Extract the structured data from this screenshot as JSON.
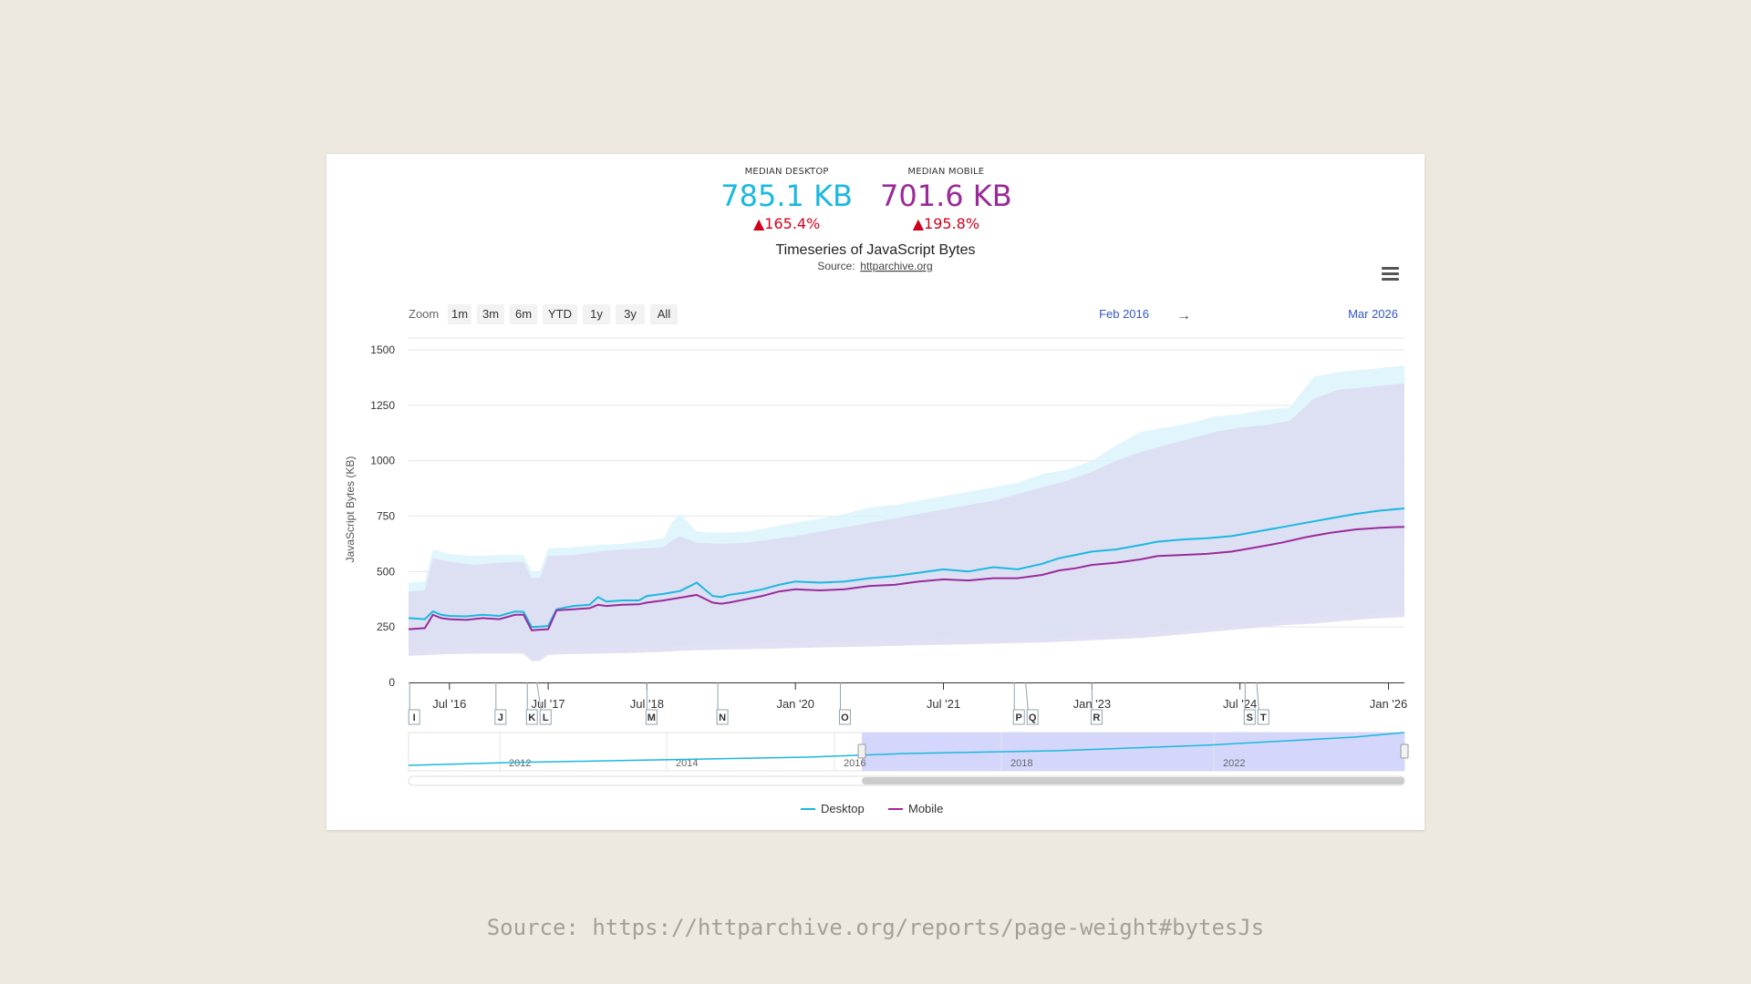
{
  "stats": {
    "desktop": {
      "label": "MEDIAN DESKTOP",
      "value": "785.1 KB",
      "change": "▲165.4%",
      "color": "#1bb8e0"
    },
    "mobile": {
      "label": "MEDIAN MOBILE",
      "value": "701.6 KB",
      "change": "▲195.8%",
      "color": "#9a2a9a"
    }
  },
  "chart_header": {
    "title": "Timeseries of JavaScript Bytes",
    "source_prefix": "Source: ",
    "source_link": "httparchive.org"
  },
  "zoom": {
    "label": "Zoom",
    "buttons": [
      "1m",
      "3m",
      "6m",
      "YTD",
      "1y",
      "3y",
      "All"
    ]
  },
  "range": {
    "from": "Feb 2016",
    "arrow": "→",
    "to": "Mar 2026"
  },
  "annotations": [
    "I",
    "J",
    "K",
    "L",
    "M",
    "N",
    "O",
    "P",
    "Q",
    "R",
    "S",
    "T"
  ],
  "navigator": {
    "year_labels": [
      "2012",
      "2014",
      "2016",
      "2018",
      "2022"
    ]
  },
  "footer": {
    "source": "Source: https://httparchive.org/reports/page-weight#bytesJs"
  },
  "colors": {
    "desktop": "#1bb8e0",
    "mobile": "#9a2a9a",
    "desktop_band": "#dcf3fc",
    "mobile_band": "#dcdcf1",
    "navigator_selection": "#cfd3fb"
  },
  "chart_data": {
    "type": "line",
    "title": "Timeseries of JavaScript Bytes",
    "ylabel": "JavaScript Bytes (KB)",
    "ylim": [
      0,
      1500
    ],
    "yticks": [
      0,
      250,
      500,
      750,
      1000,
      1250,
      1500
    ],
    "xlim": [
      "2016-02-01",
      "2026-03-01"
    ],
    "xticks": [
      {
        "date": "2016-07-01",
        "label": "Jul '16"
      },
      {
        "date": "2017-07-01",
        "label": "Jul '17"
      },
      {
        "date": "2018-07-01",
        "label": "Jul '18"
      },
      {
        "date": "2020-01-01",
        "label": "Jan '20"
      },
      {
        "date": "2021-07-01",
        "label": "Jul '21"
      },
      {
        "date": "2023-01-01",
        "label": "Jan '23"
      },
      {
        "date": "2024-07-01",
        "label": "Jul '24"
      },
      {
        "date": "2026-01-01",
        "label": "Jan '26"
      }
    ],
    "grid": true,
    "legend": "bottom-center",
    "series": [
      {
        "name": "Desktop",
        "color": "#1bb8e0",
        "x": [
          "2016-02-01",
          "2016-04-01",
          "2016-05-01",
          "2016-06-01",
          "2016-07-01",
          "2016-09-01",
          "2016-11-01",
          "2017-01-01",
          "2017-03-01",
          "2017-04-01",
          "2017-05-01",
          "2017-06-01",
          "2017-07-01",
          "2017-08-01",
          "2017-10-01",
          "2017-12-01",
          "2018-01-01",
          "2018-02-01",
          "2018-04-01",
          "2018-06-01",
          "2018-07-01",
          "2018-09-01",
          "2018-11-01",
          "2019-01-01",
          "2019-03-01",
          "2019-04-01",
          "2019-05-01",
          "2019-07-01",
          "2019-09-01",
          "2019-11-01",
          "2020-01-01",
          "2020-04-01",
          "2020-07-01",
          "2020-10-01",
          "2021-01-01",
          "2021-04-01",
          "2021-07-01",
          "2021-10-01",
          "2022-01-01",
          "2022-04-01",
          "2022-07-01",
          "2022-09-01",
          "2022-11-01",
          "2023-01-01",
          "2023-04-01",
          "2023-07-01",
          "2023-09-01",
          "2023-12-01",
          "2024-03-01",
          "2024-06-01",
          "2024-09-01",
          "2024-12-01",
          "2025-03-01",
          "2025-06-01",
          "2025-09-01",
          "2025-12-01",
          "2026-03-01"
        ],
        "y": [
          290,
          285,
          320,
          305,
          300,
          298,
          305,
          300,
          320,
          318,
          250,
          252,
          255,
          330,
          345,
          350,
          385,
          365,
          370,
          370,
          390,
          400,
          412,
          450,
          390,
          385,
          395,
          405,
          420,
          440,
          455,
          450,
          455,
          470,
          480,
          495,
          510,
          500,
          520,
          510,
          535,
          560,
          575,
          590,
          600,
          620,
          635,
          645,
          650,
          660,
          680,
          700,
          720,
          740,
          760,
          775,
          785
        ]
      },
      {
        "name": "Mobile",
        "color": "#9a2a9a",
        "x": [
          "2016-02-01",
          "2016-04-01",
          "2016-05-01",
          "2016-06-01",
          "2016-07-01",
          "2016-09-01",
          "2016-11-01",
          "2017-01-01",
          "2017-03-01",
          "2017-04-01",
          "2017-05-01",
          "2017-06-01",
          "2017-07-01",
          "2017-08-01",
          "2017-10-01",
          "2017-12-01",
          "2018-01-01",
          "2018-02-01",
          "2018-04-01",
          "2018-06-01",
          "2018-07-01",
          "2018-09-01",
          "2018-11-01",
          "2019-01-01",
          "2019-03-01",
          "2019-04-01",
          "2019-05-01",
          "2019-07-01",
          "2019-09-01",
          "2019-11-01",
          "2020-01-01",
          "2020-04-01",
          "2020-07-01",
          "2020-10-01",
          "2021-01-01",
          "2021-04-01",
          "2021-07-01",
          "2021-10-01",
          "2022-01-01",
          "2022-04-01",
          "2022-07-01",
          "2022-09-01",
          "2022-11-01",
          "2023-01-01",
          "2023-04-01",
          "2023-07-01",
          "2023-09-01",
          "2023-12-01",
          "2024-03-01",
          "2024-06-01",
          "2024-09-01",
          "2024-12-01",
          "2025-03-01",
          "2025-06-01",
          "2025-09-01",
          "2025-12-01",
          "2026-03-01"
        ],
        "y": [
          240,
          245,
          305,
          290,
          285,
          282,
          290,
          285,
          305,
          305,
          235,
          238,
          240,
          325,
          330,
          335,
          350,
          345,
          350,
          352,
          360,
          370,
          382,
          395,
          360,
          355,
          360,
          375,
          390,
          410,
          420,
          415,
          420,
          435,
          440,
          455,
          465,
          460,
          470,
          470,
          485,
          505,
          515,
          530,
          540,
          555,
          570,
          575,
          580,
          590,
          610,
          630,
          655,
          675,
          690,
          698,
          702
        ]
      }
    ],
    "percentile_bands": [
      {
        "series": "Desktop",
        "color": "#dcf3fc",
        "x": [
          "2016-02-01",
          "2016-04-01",
          "2016-05-01",
          "2016-07-01",
          "2016-10-01",
          "2017-01-01",
          "2017-04-01",
          "2017-05-01",
          "2017-06-01",
          "2017-07-01",
          "2017-10-01",
          "2018-01-01",
          "2018-04-01",
          "2018-07-01",
          "2018-09-01",
          "2018-10-01",
          "2018-11-01",
          "2019-01-01",
          "2019-04-01",
          "2019-07-01",
          "2019-10-01",
          "2020-01-01",
          "2020-04-01",
          "2020-07-01",
          "2020-10-01",
          "2021-01-01",
          "2021-04-01",
          "2021-07-01",
          "2021-10-01",
          "2022-01-01",
          "2022-04-01",
          "2022-07-01",
          "2022-10-01",
          "2023-01-01",
          "2023-04-01",
          "2023-07-01",
          "2023-10-01",
          "2024-01-01",
          "2024-04-01",
          "2024-07-01",
          "2024-10-01",
          "2025-01-01",
          "2025-04-01",
          "2025-07-01",
          "2025-10-01",
          "2026-03-01"
        ],
        "low": [
          145,
          145,
          148,
          150,
          152,
          152,
          150,
          110,
          112,
          150,
          152,
          155,
          158,
          160,
          162,
          165,
          168,
          170,
          172,
          175,
          178,
          180,
          182,
          185,
          188,
          190,
          192,
          195,
          198,
          200,
          200,
          202,
          205,
          210,
          215,
          220,
          230,
          240,
          250,
          260,
          270,
          280,
          290,
          300,
          310,
          320
        ],
        "high": [
          450,
          455,
          600,
          580,
          570,
          575,
          575,
          500,
          502,
          605,
          610,
          620,
          625,
          640,
          650,
          720,
          760,
          680,
          675,
          680,
          700,
          720,
          740,
          760,
          790,
          800,
          820,
          840,
          860,
          880,
          900,
          940,
          960,
          1000,
          1070,
          1130,
          1150,
          1170,
          1200,
          1210,
          1230,
          1240,
          1380,
          1400,
          1410,
          1430
        ]
      },
      {
        "series": "Mobile",
        "color": "#dcdcf1",
        "x": [
          "2016-02-01",
          "2016-04-01",
          "2016-05-01",
          "2016-07-01",
          "2016-10-01",
          "2017-01-01",
          "2017-04-01",
          "2017-05-01",
          "2017-06-01",
          "2017-07-01",
          "2017-10-01",
          "2018-01-01",
          "2018-04-01",
          "2018-07-01",
          "2018-09-01",
          "2018-10-01",
          "2018-11-01",
          "2019-01-01",
          "2019-04-01",
          "2019-07-01",
          "2019-10-01",
          "2020-01-01",
          "2020-04-01",
          "2020-07-01",
          "2020-10-01",
          "2021-01-01",
          "2021-04-01",
          "2021-07-01",
          "2021-10-01",
          "2022-01-01",
          "2022-04-01",
          "2022-07-01",
          "2022-10-01",
          "2023-01-01",
          "2023-04-01",
          "2023-07-01",
          "2023-10-01",
          "2024-01-01",
          "2024-04-01",
          "2024-07-01",
          "2024-10-01",
          "2025-01-01",
          "2025-04-01",
          "2025-07-01",
          "2025-10-01",
          "2026-03-01"
        ],
        "low": [
          120,
          122,
          125,
          128,
          130,
          130,
          130,
          95,
          98,
          125,
          128,
          130,
          132,
          135,
          138,
          140,
          142,
          145,
          148,
          150,
          152,
          155,
          158,
          160,
          162,
          165,
          168,
          170,
          172,
          175,
          178,
          180,
          185,
          190,
          195,
          200,
          210,
          220,
          230,
          240,
          250,
          260,
          265,
          275,
          285,
          295
        ],
        "high": [
          410,
          415,
          560,
          545,
          530,
          540,
          545,
          470,
          472,
          570,
          575,
          590,
          600,
          605,
          610,
          640,
          660,
          630,
          625,
          630,
          645,
          660,
          680,
          700,
          720,
          740,
          760,
          780,
          800,
          820,
          850,
          880,
          910,
          950,
          1000,
          1040,
          1070,
          1100,
          1130,
          1150,
          1160,
          1180,
          1280,
          1320,
          1330,
          1350
        ]
      }
    ],
    "annotations": [
      {
        "date": "2016-02-05",
        "label": "I"
      },
      {
        "date": "2016-12-20",
        "label": "J"
      },
      {
        "date": "2017-04-15",
        "label": "K"
      },
      {
        "date": "2017-05-20",
        "label": "L"
      },
      {
        "date": "2018-07-01",
        "label": "M"
      },
      {
        "date": "2019-03-20",
        "label": "N"
      },
      {
        "date": "2020-06-15",
        "label": "O"
      },
      {
        "date": "2022-03-20",
        "label": "P"
      },
      {
        "date": "2022-05-01",
        "label": "Q"
      },
      {
        "date": "2023-01-01",
        "label": "R"
      },
      {
        "date": "2024-07-20",
        "label": "S"
      },
      {
        "date": "2024-09-01",
        "label": "T"
      }
    ],
    "legend_items": [
      "Desktop",
      "Mobile"
    ]
  }
}
